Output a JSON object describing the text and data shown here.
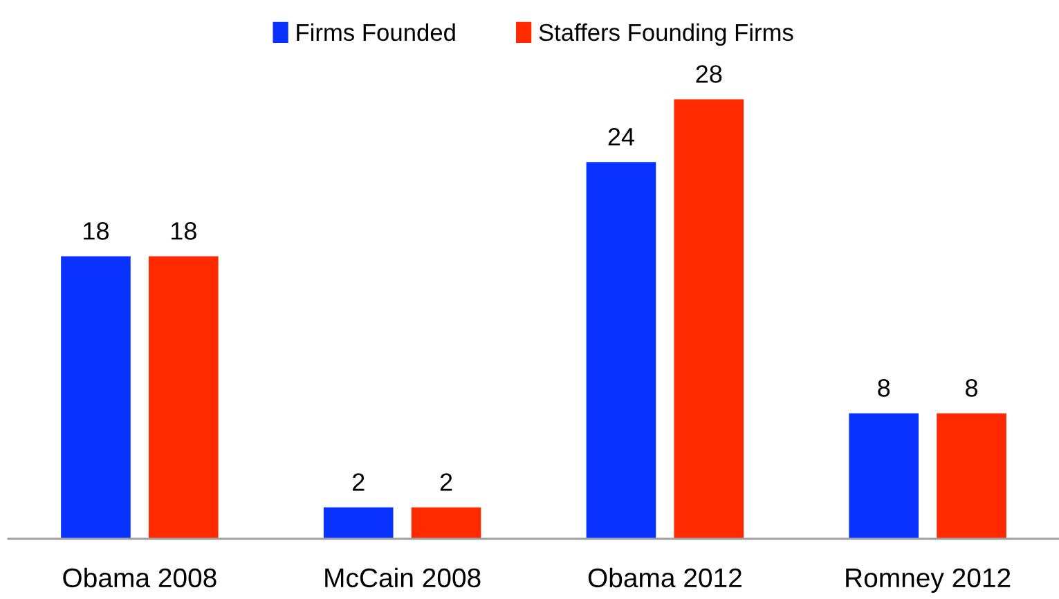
{
  "chart_data": {
    "type": "bar",
    "categories": [
      "Obama 2008",
      "McCain 2008",
      "Obama 2012",
      "Romney 2012"
    ],
    "series": [
      {
        "name": "Firms Founded",
        "color": "#0a32ff",
        "values": [
          18,
          2,
          24,
          8
        ]
      },
      {
        "name": "Staffers Founding Firms",
        "color": "#ff2a00",
        "values": [
          18,
          2,
          28,
          8
        ]
      }
    ],
    "data_labels": true,
    "legend": "top",
    "grid": false,
    "tick_labels": "x"
  }
}
